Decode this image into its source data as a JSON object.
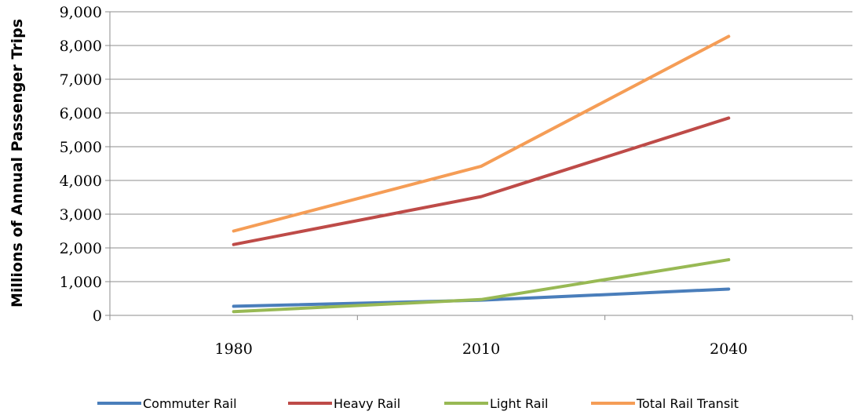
{
  "chart_data": {
    "type": "line",
    "title": "",
    "xlabel": "",
    "ylabel": "Millions of Annual Passenger Trips",
    "categories": [
      "1980",
      "2010",
      "2040"
    ],
    "ylim": [
      0,
      9000
    ],
    "yticks": [
      "0",
      "1,000",
      "2,000",
      "3,000",
      "4,000",
      "5,000",
      "6,000",
      "7,000",
      "8,000",
      "9,000"
    ],
    "grid": true,
    "legend_position": "bottom",
    "series": [
      {
        "name": "Commuter Rail",
        "color": "#4a7ebb",
        "values": [
          270,
          450,
          780
        ]
      },
      {
        "name": "Heavy Rail",
        "color": "#be4b48",
        "values": [
          2100,
          3520,
          5850
        ]
      },
      {
        "name": "Light Rail",
        "color": "#98b954",
        "values": [
          110,
          470,
          1650
        ]
      },
      {
        "name": "Total Rail Transit",
        "color": "#f59d56",
        "values": [
          2500,
          4420,
          8270
        ]
      }
    ]
  }
}
